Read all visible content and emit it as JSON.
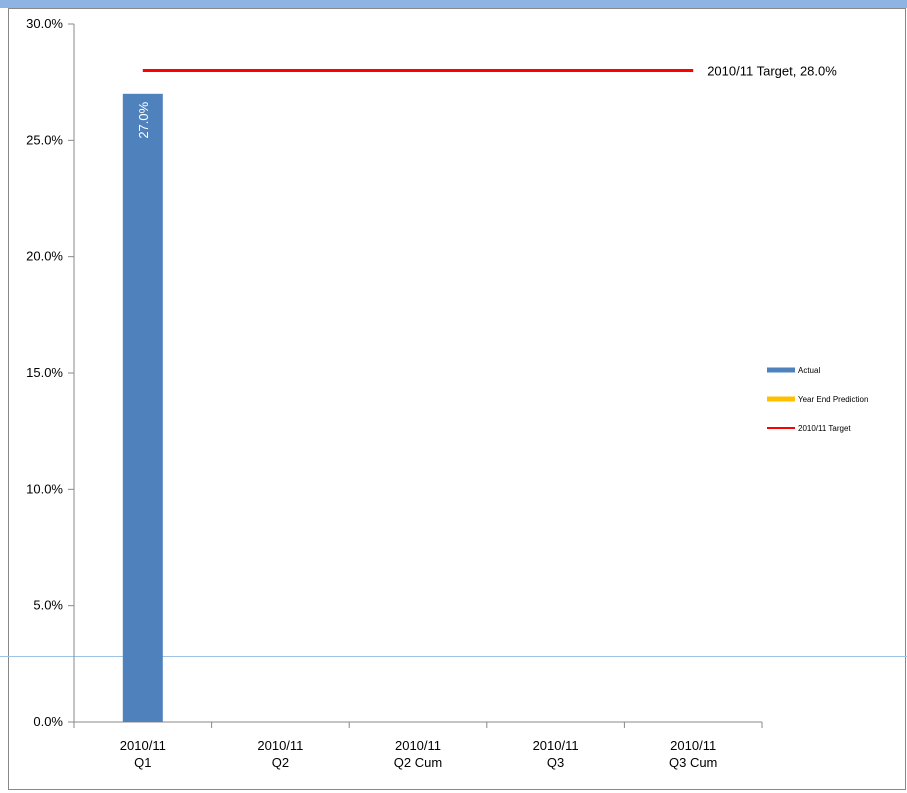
{
  "colors": {
    "top_band": "#8db4e2",
    "rule": "#9dc3e6",
    "actual": "#4f81bd",
    "prediction": "#ffc000",
    "target": "#ff0000",
    "axis": "#888888"
  },
  "chart_data": {
    "type": "bar",
    "title": "",
    "xlabel": "",
    "ylabel": "",
    "ylim": [
      0,
      30
    ],
    "y_ticks": [
      "0.0%",
      "5.0%",
      "10.0%",
      "15.0%",
      "20.0%",
      "25.0%",
      "30.0%"
    ],
    "grid": false,
    "legend_position": "right",
    "categories": [
      {
        "line1": "2010/11",
        "line2": "Q1"
      },
      {
        "line1": "2010/11",
        "line2": "Q2"
      },
      {
        "line1": "2010/11",
        "line2": "Q2 Cum"
      },
      {
        "line1": "2010/11",
        "line2": "Q3"
      },
      {
        "line1": "2010/11",
        "line2": "Q3 Cum"
      }
    ],
    "series": [
      {
        "name": "Actual",
        "type": "bar",
        "values": [
          27.0,
          null,
          null,
          null,
          null
        ],
        "labels": [
          "27.0%",
          "",
          "",
          "",
          ""
        ]
      },
      {
        "name": "Year End Prediction",
        "type": "line",
        "values": [
          null,
          null,
          null,
          null,
          null
        ]
      },
      {
        "name": "2010/11 Target",
        "type": "line",
        "values": [
          28.0,
          28.0,
          28.0,
          28.0,
          28.0
        ],
        "label": "2010/11 Target, 28.0%"
      }
    ]
  }
}
